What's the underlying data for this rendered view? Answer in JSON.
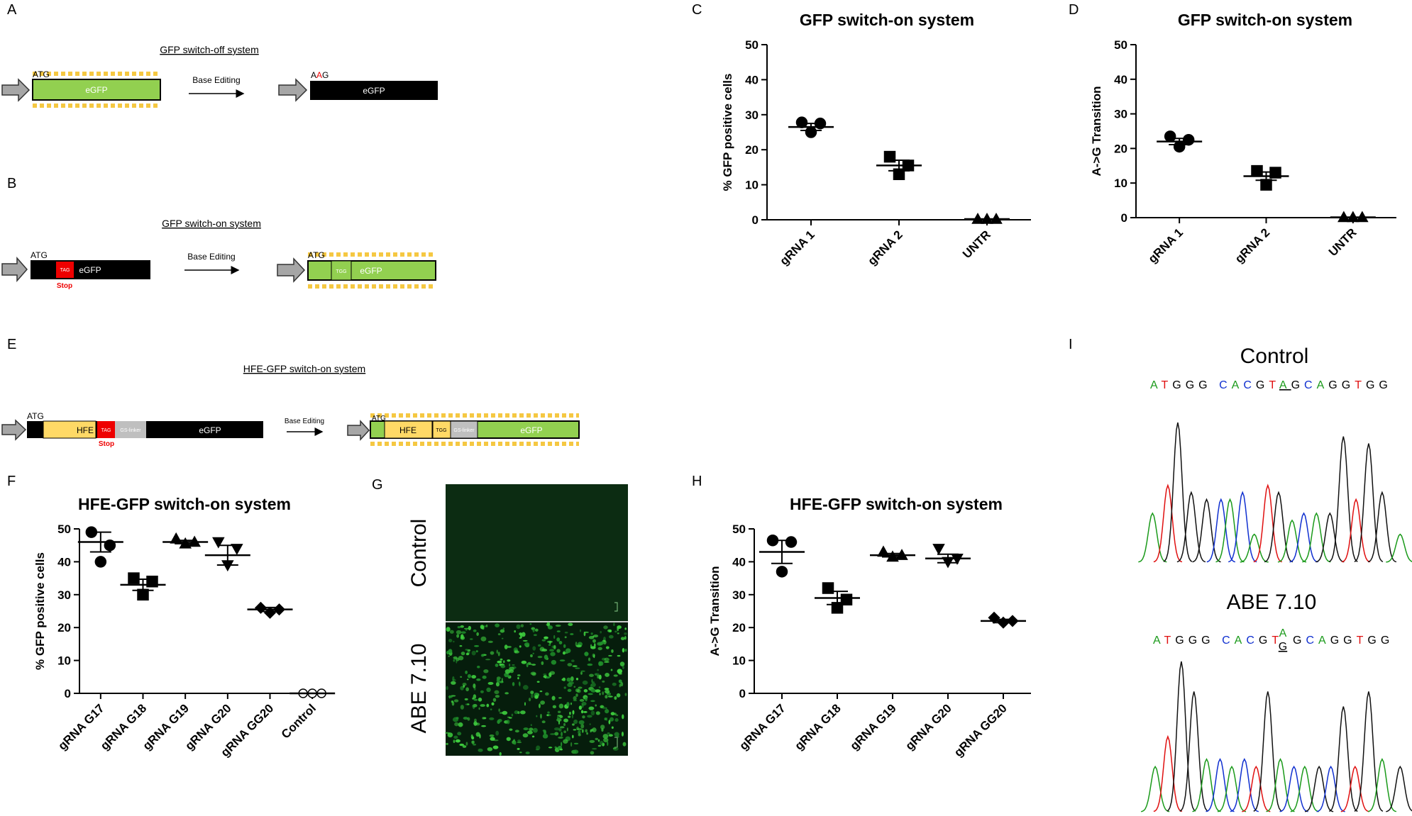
{
  "panel_labels": {
    "a": "A",
    "b": "B",
    "c": "C",
    "d": "D",
    "e": "E",
    "f": "F",
    "g": "G",
    "h": "H",
    "i": "I"
  },
  "panel_a": {
    "title": "GFP switch-off system",
    "start_codon": "ATG",
    "gene": "eGFP",
    "arrow_label": "Base Editing",
    "edited_prefix": "A",
    "edited_base": "A",
    "edited_suffix": "G",
    "edited_gene": "eGFP"
  },
  "panel_b": {
    "title": "GFP switch-on system",
    "start_codon": "ATG",
    "stop_codon": "TAG",
    "stop_label": "Stop",
    "gene": "eGFP",
    "arrow_label": "Base Editing",
    "edited_start_codon": "ATG",
    "edited_codon": "TGG",
    "edited_gene": "eGFP"
  },
  "panel_e": {
    "title": "HFE-GFP switch-on system",
    "start_codon": "ATG",
    "hfe": "HFE",
    "stop_codon": "TAG",
    "linker": "GS-linker",
    "gene": "eGFP",
    "stop_label": "Stop",
    "arrow_label": "Base Editing",
    "edited_start_codon": "ATG",
    "edited_hfe": "HFE",
    "edited_codon": "TGG",
    "edited_linker": "GS-linker",
    "edited_gene": "eGFP"
  },
  "panel_g": {
    "top_label": "Control",
    "bottom_label": "ABE 7.10"
  },
  "panel_i": {
    "control_label": "Control",
    "control_seq_before": "ATGGG CACGT",
    "control_seq_site": "A",
    "control_seq_after": "GCAGGTGG",
    "edited_label": "ABE 7.10",
    "edited_seq_before": "ATGGG CACGT",
    "edited_seq_site_top": "A",
    "edited_seq_site_bottom": "G",
    "edited_seq_after": "GCAGGTGG"
  },
  "chart_data": [
    {
      "type": "scatter",
      "title": "GFP switch-on system",
      "y_label": "% GFP positive cells",
      "categories": [
        "gRNA 1",
        "gRNA 2",
        "UNTR"
      ],
      "markers": [
        "circle",
        "square",
        "triangle"
      ],
      "values": [
        [
          27.8,
          27.5,
          25
        ],
        [
          18,
          15.5,
          13
        ],
        [
          0.2,
          0.2,
          0.2
        ]
      ],
      "means": [
        26.5,
        15.5,
        0.2
      ],
      "sems": [
        1,
        1.5,
        0
      ],
      "color": "#000000",
      "ylim": [
        0,
        50
      ],
      "yticks": [
        0,
        10,
        20,
        30,
        40,
        50
      ]
    },
    {
      "type": "scatter",
      "title": "GFP switch-on system",
      "y_label": "A->G Transition",
      "categories": [
        "gRNA 1",
        "gRNA 2",
        "UNTR"
      ],
      "markers": [
        "circle",
        "square",
        "triangle"
      ],
      "values": [
        [
          23.5,
          22.5,
          20.5
        ],
        [
          13.5,
          13,
          9.5
        ],
        [
          0.1,
          0.1,
          0.1
        ]
      ],
      "means": [
        22,
        12,
        0.1
      ],
      "sems": [
        0.9,
        1.2,
        0
      ],
      "color": "#000000",
      "ylim": [
        0,
        50
      ],
      "yticks": [
        0,
        10,
        20,
        30,
        40,
        50
      ]
    },
    {
      "type": "scatter",
      "title": "HFE-GFP switch-on system",
      "y_label": "% GFP positive cells",
      "categories": [
        "gRNA G17",
        "gRNA G18",
        "gRNA G19",
        "gRNA G20",
        "gRNA GG20",
        "Control"
      ],
      "markers": [
        "circle",
        "square",
        "triangle",
        "triangle-down",
        "diamond",
        "open-circle"
      ],
      "values": [
        [
          49,
          45,
          40
        ],
        [
          35,
          34,
          30
        ],
        [
          47,
          46,
          45.5
        ],
        [
          46,
          44,
          39
        ],
        [
          26,
          25.5,
          24.5
        ],
        [
          0,
          0,
          0
        ]
      ],
      "means": [
        46,
        33,
        46,
        42,
        25.5,
        0
      ],
      "sems": [
        3,
        1.7,
        0.5,
        3,
        0.6,
        0
      ],
      "color": "#000000",
      "ylim": [
        0,
        50
      ],
      "yticks": [
        0,
        10,
        20,
        30,
        40,
        50
      ]
    },
    {
      "type": "scatter",
      "title": "HFE-GFP switch-on system",
      "y_label": "A->G Transition",
      "categories": [
        "gRNA G17",
        "gRNA G18",
        "gRNA G19",
        "gRNA G20",
        "gRNA GG20"
      ],
      "markers": [
        "circle",
        "square",
        "triangle",
        "triangle-down",
        "diamond"
      ],
      "values": [
        [
          46.5,
          46,
          37
        ],
        [
          32,
          28.5,
          26
        ],
        [
          43,
          42,
          41.5
        ],
        [
          44,
          41,
          40
        ],
        [
          23,
          22,
          21.5
        ]
      ],
      "means": [
        43,
        29,
        42,
        41,
        22
      ],
      "sems": [
        3.5,
        2,
        0.5,
        1.3,
        0.5
      ],
      "color": "#000000",
      "ylim": [
        0,
        50
      ],
      "yticks": [
        0,
        10,
        20,
        30,
        40,
        50
      ]
    }
  ]
}
